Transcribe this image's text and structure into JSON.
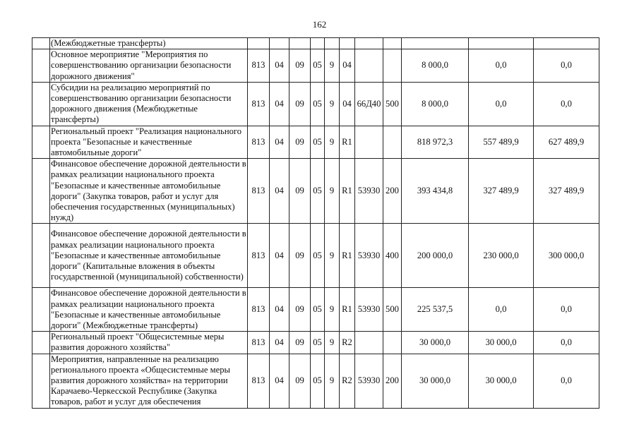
{
  "page_number": "162",
  "rows": [
    {
      "desc": "(Межбюджетные трансферты)",
      "c1": "",
      "c2": "",
      "c3": "",
      "c4": "",
      "c5": "",
      "c6": "",
      "c7": "",
      "c8": "",
      "v1": "",
      "v2": "",
      "v3": ""
    },
    {
      "desc": "Основное мероприятие \"Мероприятия по совершенствованию организации безопасности дорожного движения\"",
      "c1": "813",
      "c2": "04",
      "c3": "09",
      "c4": "05",
      "c5": "9",
      "c6": "04",
      "c7": "",
      "c8": "",
      "v1": "8 000,0",
      "v2": "0,0",
      "v3": "0,0"
    },
    {
      "desc": "Субсидии на реализацию мероприятий по совершенствованию организации безопасности дорожного движения (Межбюджетные трансферты)",
      "c1": "813",
      "c2": "04",
      "c3": "09",
      "c4": "05",
      "c5": "9",
      "c6": "04",
      "c7": "66Д40",
      "c8": "500",
      "v1": "8 000,0",
      "v2": "0,0",
      "v3": "0,0"
    },
    {
      "desc": "Региональный проект \"Реализация национального проекта \"Безопасные и качественные автомобильные дороги\"",
      "c1": "813",
      "c2": "04",
      "c3": "09",
      "c4": "05",
      "c5": "9",
      "c6": "R1",
      "c7": "",
      "c8": "",
      "v1": "818 972,3",
      "v2": "557 489,9",
      "v3": "627 489,9"
    },
    {
      "desc": "Финансовое обеспечение дорожной деятельности в рамках реализации национального проекта \"Безопасные и качественные автомобильные дороги\" (Закупка товаров, работ и услуг для обеспечения государственных (муниципальных) нужд)",
      "c1": "813",
      "c2": "04",
      "c3": "09",
      "c4": "05",
      "c5": "9",
      "c6": "R1",
      "c7": "53930",
      "c8": "200",
      "v1": "393 434,8",
      "v2": "327 489,9",
      "v3": "327 489,9"
    },
    {
      "desc": "Финансовое обеспечение дорожной деятельности в рамках реализации национального проекта \"Безопасные и качественные автомобильные дороги\" (Капитальные вложения в объекты государственной (муниципальной) собственности)",
      "c1": "813",
      "c2": "04",
      "c3": "09",
      "c4": "05",
      "c5": "9",
      "c6": "R1",
      "c7": "53930",
      "c8": "400",
      "v1": "200 000,0",
      "v2": "230 000,0",
      "v3": "300 000,0"
    },
    {
      "desc": "Финансовое обеспечение дорожной деятельности в рамках реализации национального проекта \"Безопасные и качественные автомобильные дороги\" (Межбюджетные трансферты)",
      "c1": "813",
      "c2": "04",
      "c3": "09",
      "c4": "05",
      "c5": "9",
      "c6": "R1",
      "c7": "53930",
      "c8": "500",
      "v1": "225 537,5",
      "v2": "0,0",
      "v3": "0,0"
    },
    {
      "desc": "Региональный проект \"Общесистемные меры развития дорожного хозяйства\"",
      "c1": "813",
      "c2": "04",
      "c3": "09",
      "c4": "05",
      "c5": "9",
      "c6": "R2",
      "c7": "",
      "c8": "",
      "v1": "30 000,0",
      "v2": "30 000,0",
      "v3": "0,0"
    },
    {
      "desc": "Мероприятия, направленные на реализацию регионального проекта «Общесистемные меры развития дорожного хозяйства» на территории Карачаево-Черкесской Республике (Закупка товаров, работ и услуг для обеспечения",
      "c1": "813",
      "c2": "04",
      "c3": "09",
      "c4": "05",
      "c5": "9",
      "c6": "R2",
      "c7": "53930",
      "c8": "200",
      "v1": "30 000,0",
      "v2": "30 000,0",
      "v3": "0,0"
    }
  ]
}
